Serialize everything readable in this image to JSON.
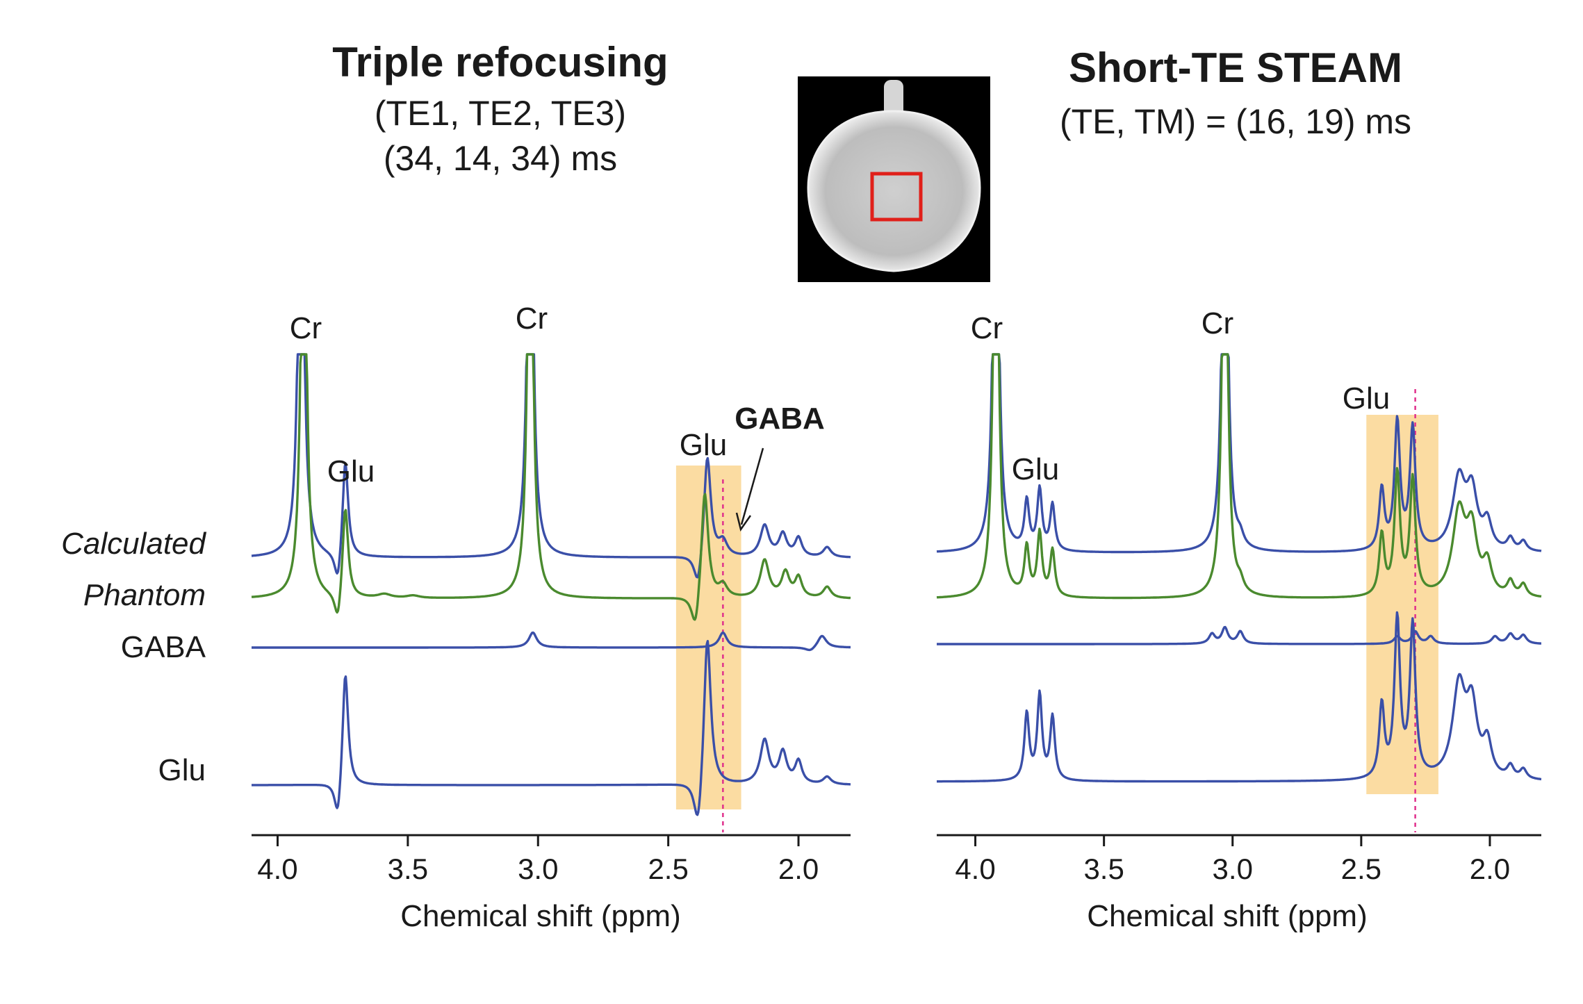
{
  "colors": {
    "calculated": "#3a4fa8",
    "phantom": "#4a8a2e",
    "basis": "#3a4fa8",
    "highlight": "#fbdca2",
    "gaba_marker": "#e0308c",
    "roi": "#e0201a"
  },
  "left_panel": {
    "title": "Triple refocusing",
    "subtitle_1": "(TE1, TE2, TE3)",
    "subtitle_2": "(34, 14, 34) ms",
    "peak_labels": {
      "cr_1": "Cr",
      "cr_2": "Cr",
      "glu_1": "Glu",
      "glu_2": "Glu",
      "gaba": "GABA"
    },
    "row_labels": {
      "calculated": "Calculated",
      "phantom": "Phantom",
      "gaba": "GABA",
      "glu": "Glu"
    },
    "xlabel": "Chemical shift (ppm)",
    "ticks": [
      "4.0",
      "3.5",
      "3.0",
      "2.5",
      "2.0"
    ]
  },
  "right_panel": {
    "title": "Short-TE STEAM",
    "subtitle_1": "(TE, TM) = (16, 19) ms",
    "peak_labels": {
      "cr_1": "Cr",
      "cr_2": "Cr",
      "glu_1": "Glu",
      "glu_2": "Glu"
    },
    "xlabel": "Chemical shift (ppm)",
    "ticks": [
      "4.0",
      "3.5",
      "3.0",
      "2.5",
      "2.0"
    ]
  },
  "phantom_image": {
    "icon": "phantom-mri-image",
    "roi_icon": "voxel-roi-square"
  },
  "chart_data": [
    {
      "type": "line",
      "title": "Triple refocusing (TE1, TE2, TE3) (34, 14, 34) ms",
      "xlabel": "Chemical shift (ppm)",
      "xlim": [
        4.1,
        1.8
      ],
      "x_ticks": [
        4.0,
        3.5,
        3.0,
        2.5,
        2.0
      ],
      "highlight_ppm": [
        2.47,
        2.22
      ],
      "gaba_marker_ppm": 2.29,
      "series": [
        {
          "name": "Calculated",
          "color": "#3a4fa8",
          "offset": 0,
          "amp": 1.0,
          "peaks": [
            [
              3.91,
              4.0,
              0.012
            ],
            [
              3.74,
              0.8,
              0.013,
              "d"
            ],
            [
              3.03,
              4.0,
              0.012
            ],
            [
              2.35,
              0.85,
              0.016,
              "d"
            ],
            [
              2.29,
              0.12,
              0.02
            ],
            [
              2.13,
              0.25,
              0.02
            ],
            [
              2.06,
              0.18,
              0.018
            ],
            [
              2.0,
              0.15,
              0.016
            ],
            [
              1.89,
              0.08,
              0.018
            ]
          ]
        },
        {
          "name": "Phantom",
          "color": "#4a8a2e",
          "offset": 1,
          "amp": 1.0,
          "peaks": [
            [
              3.9,
              4.0,
              0.012
            ],
            [
              3.74,
              0.75,
              0.013,
              "d"
            ],
            [
              3.03,
              4.0,
              0.012
            ],
            [
              2.36,
              0.9,
              0.016,
              "d"
            ],
            [
              2.29,
              0.1,
              0.02
            ],
            [
              2.13,
              0.3,
              0.02
            ],
            [
              2.05,
              0.2,
              0.018
            ],
            [
              2.0,
              0.16,
              0.016
            ],
            [
              1.89,
              0.09,
              0.018
            ],
            [
              3.59,
              0.03,
              0.03
            ],
            [
              3.48,
              0.02,
              0.03
            ]
          ]
        },
        {
          "name": "GABA",
          "color": "#3a4fa8",
          "offset": 2,
          "amp": 1.0,
          "peaks": [
            [
              3.02,
              0.12,
              0.018
            ],
            [
              2.29,
              0.12,
              0.018
            ],
            [
              1.91,
              0.1,
              0.02,
              "d"
            ]
          ]
        },
        {
          "name": "Glu",
          "color": "#3a4fa8",
          "offset": 3,
          "amp": 1.0,
          "peaks": [
            [
              3.74,
              0.95,
              0.013,
              "d"
            ],
            [
              2.35,
              1.25,
              0.016,
              "d"
            ],
            [
              2.13,
              0.35,
              0.02
            ],
            [
              2.06,
              0.25,
              0.018
            ],
            [
              2.0,
              0.18,
              0.016
            ],
            [
              1.89,
              0.06,
              0.018
            ]
          ]
        }
      ]
    },
    {
      "type": "line",
      "title": "Short-TE STEAM (TE, TM) = (16, 19) ms",
      "xlabel": "Chemical shift (ppm)",
      "xlim": [
        4.15,
        1.8
      ],
      "x_ticks": [
        4.0,
        3.5,
        3.0,
        2.5,
        2.0
      ],
      "highlight_ppm": [
        2.48,
        2.2
      ],
      "gaba_marker_ppm": 2.29,
      "series": [
        {
          "name": "Calculated",
          "color": "#3a4fa8",
          "offset": 0,
          "amp": 1.0,
          "peaks": [
            [
              3.92,
              4.0,
              0.012
            ],
            [
              3.8,
              0.4,
              0.011
            ],
            [
              3.75,
              0.5,
              0.011
            ],
            [
              3.7,
              0.38,
              0.011
            ],
            [
              3.03,
              4.0,
              0.012
            ],
            [
              2.97,
              0.08,
              0.015
            ],
            [
              2.42,
              0.5,
              0.012
            ],
            [
              2.36,
              1.05,
              0.013
            ],
            [
              2.3,
              1.0,
              0.013
            ],
            [
              2.12,
              0.58,
              0.03
            ],
            [
              2.07,
              0.45,
              0.025
            ],
            [
              2.01,
              0.22,
              0.02
            ],
            [
              1.92,
              0.1,
              0.015
            ],
            [
              1.87,
              0.08,
              0.015
            ]
          ]
        },
        {
          "name": "Phantom",
          "color": "#4a8a2e",
          "offset": 1,
          "amp": 1.0,
          "peaks": [
            [
              3.92,
              4.0,
              0.012
            ],
            [
              3.8,
              0.4,
              0.011
            ],
            [
              3.75,
              0.52,
              0.011
            ],
            [
              3.7,
              0.38,
              0.011
            ],
            [
              3.03,
              4.0,
              0.012
            ],
            [
              2.97,
              0.08,
              0.015
            ],
            [
              2.42,
              0.5,
              0.012
            ],
            [
              2.36,
              1.0,
              0.013
            ],
            [
              2.3,
              0.95,
              0.013
            ],
            [
              2.12,
              0.68,
              0.03
            ],
            [
              2.07,
              0.5,
              0.025
            ],
            [
              2.01,
              0.25,
              0.02
            ],
            [
              1.92,
              0.12,
              0.015
            ],
            [
              1.87,
              0.1,
              0.015
            ]
          ]
        },
        {
          "name": "GABA",
          "color": "#3a4fa8",
          "offset": 2,
          "amp": 1.0,
          "peaks": [
            [
              3.08,
              0.08,
              0.014
            ],
            [
              3.03,
              0.13,
              0.014
            ],
            [
              2.97,
              0.1,
              0.014
            ],
            [
              2.36,
              0.06,
              0.015
            ],
            [
              2.29,
              0.1,
              0.015
            ],
            [
              2.23,
              0.06,
              0.015
            ],
            [
              1.98,
              0.06,
              0.015
            ],
            [
              1.92,
              0.08,
              0.015
            ],
            [
              1.87,
              0.07,
              0.015
            ]
          ]
        },
        {
          "name": "Glu",
          "color": "#3a4fa8",
          "offset": 3,
          "amp": 1.0,
          "peaks": [
            [
              3.8,
              0.55,
              0.011
            ],
            [
              3.75,
              0.7,
              0.011
            ],
            [
              3.7,
              0.52,
              0.011
            ],
            [
              2.42,
              0.6,
              0.012
            ],
            [
              2.36,
              1.3,
              0.013
            ],
            [
              2.3,
              1.25,
              0.013
            ],
            [
              2.12,
              0.75,
              0.03
            ],
            [
              2.07,
              0.55,
              0.025
            ],
            [
              2.01,
              0.28,
              0.02
            ],
            [
              1.92,
              0.1,
              0.015
            ],
            [
              1.87,
              0.08,
              0.015
            ]
          ]
        }
      ]
    }
  ]
}
